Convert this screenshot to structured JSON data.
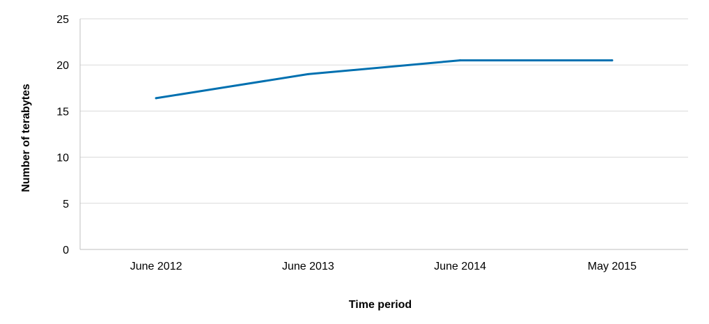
{
  "chart_data": {
    "type": "line",
    "title": "",
    "xlabel": "Time period",
    "ylabel": "Number of terabytes",
    "categories": [
      "June 2012",
      "June 2013",
      "June 2014",
      "May 2015"
    ],
    "series": [
      {
        "values": [
          16.4,
          19.0,
          20.5,
          20.5
        ],
        "color": "#0070b0"
      }
    ],
    "ylim": [
      0,
      25
    ],
    "yticks": [
      0,
      5,
      10,
      15,
      20,
      25
    ],
    "grid": true,
    "legend": "none"
  }
}
